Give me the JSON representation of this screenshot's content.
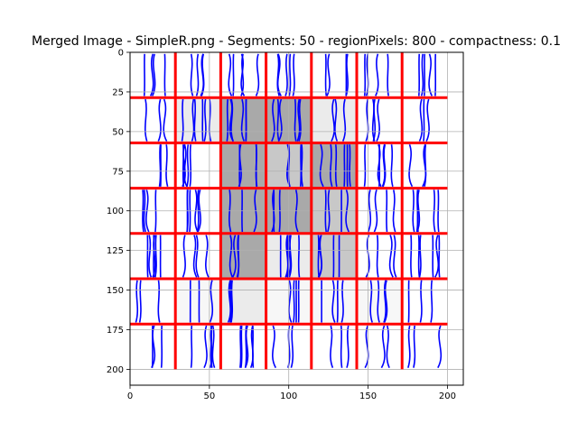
{
  "chart_data": {
    "type": "image",
    "title": "Merged Image - SimpleR.png - Segments: 50 - regionPixels: 800 - compactness: 0.1",
    "xlabel": "",
    "ylabel": "",
    "xlim": [
      0,
      210
    ],
    "ylim": [
      210,
      0
    ],
    "xticks": [
      0,
      50,
      100,
      150,
      200
    ],
    "yticks": [
      0,
      25,
      50,
      75,
      100,
      125,
      150,
      175,
      200
    ],
    "grid": true,
    "image_extent": [
      0,
      200,
      200,
      0
    ],
    "grid_cell": 28.57,
    "region_boundary_color": "#ff0000",
    "contour_color": "#0000ff",
    "cells": [
      {
        "row": 1,
        "col": 1,
        "shade": "light"
      },
      {
        "row": 1,
        "col": 2,
        "shade": "dark"
      },
      {
        "row": 1,
        "col": 3,
        "shade": "dark"
      },
      {
        "row": 1,
        "col": 4,
        "shade": "light"
      },
      {
        "row": 2,
        "col": 2,
        "shade": "dark"
      },
      {
        "row": 2,
        "col": 3,
        "shade": "medium"
      },
      {
        "row": 2,
        "col": 4,
        "shade": "dark"
      },
      {
        "row": 3,
        "col": 2,
        "shade": "dark"
      },
      {
        "row": 3,
        "col": 3,
        "shade": "dark"
      },
      {
        "row": 3,
        "col": 4,
        "shade": "medium"
      },
      {
        "row": 4,
        "col": 2,
        "shade": "dark"
      },
      {
        "row": 4,
        "col": 3,
        "shade": "light"
      },
      {
        "row": 4,
        "col": 4,
        "shade": "medium"
      },
      {
        "row": 5,
        "col": 1,
        "shade": "faint"
      },
      {
        "row": 5,
        "col": 2,
        "shade": "light"
      },
      {
        "row": 5,
        "col": 3,
        "shade": "faint"
      },
      {
        "row": 5,
        "col": 4,
        "shade": "faint"
      },
      {
        "row": 5,
        "col": 5,
        "shade": "faint"
      }
    ],
    "shade_colors": {
      "dark": "#a9a9a9",
      "medium": "#c8c8c8",
      "light": "#ebebeb",
      "faint": "#f7f7f7"
    }
  }
}
